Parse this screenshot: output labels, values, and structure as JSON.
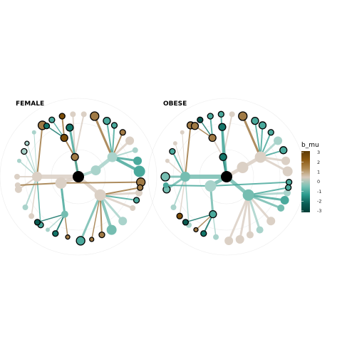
{
  "chart_data": {
    "type": "radial-tree",
    "panels": [
      {
        "title": "FEMALE"
      },
      {
        "title": "OBESE"
      }
    ],
    "legend": {
      "title": "b_mu",
      "ticks": [
        "3",
        "2",
        "1",
        "0",
        "-1",
        "-2",
        "-3"
      ],
      "tick_values": [
        3,
        2,
        1,
        0,
        -1,
        -2,
        -3
      ],
      "range": [
        -3,
        3
      ],
      "colors": [
        "#5c3a05",
        "#8c5a12",
        "#b08a52",
        "#d8cbbd",
        "#7cc3b6",
        "#2a9a8d",
        "#0b5e55",
        "#023d36"
      ]
    }
  }
}
